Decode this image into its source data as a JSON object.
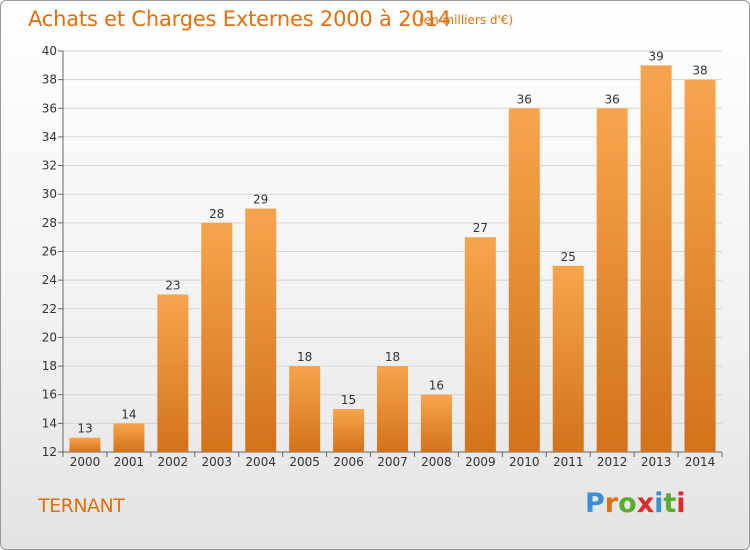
{
  "title": "Achats et Charges Externes 2000 à 2014",
  "unit_note": "(en milliers d'€)",
  "place": "TERNANT",
  "logo": {
    "letters": [
      "P",
      "r",
      "o",
      "x",
      "i",
      "t",
      "i"
    ],
    "colors": [
      "#3a8fd6",
      "#e0700f",
      "#5aab2f",
      "#e0282f",
      "#3a8fd6",
      "#5aab2f",
      "#e0282f"
    ]
  },
  "colors": {
    "bar_top": "#f7a54d",
    "bar_bottom": "#d2731a",
    "title": "#e0700f"
  },
  "chart_data": {
    "type": "bar",
    "title": "Achats et Charges Externes 2000 à 2014",
    "categories": [
      "2000",
      "2001",
      "2002",
      "2003",
      "2004",
      "2005",
      "2006",
      "2007",
      "2008",
      "2009",
      "2010",
      "2011",
      "2012",
      "2013",
      "2014"
    ],
    "values": [
      13,
      14,
      23,
      28,
      29,
      18,
      15,
      18,
      16,
      27,
      36,
      25,
      36,
      39,
      38
    ],
    "ylim": [
      12,
      40
    ],
    "yticks": [
      12,
      14,
      16,
      18,
      20,
      22,
      24,
      26,
      28,
      30,
      32,
      34,
      36,
      38,
      40
    ],
    "grid": true,
    "data_labels": true
  }
}
